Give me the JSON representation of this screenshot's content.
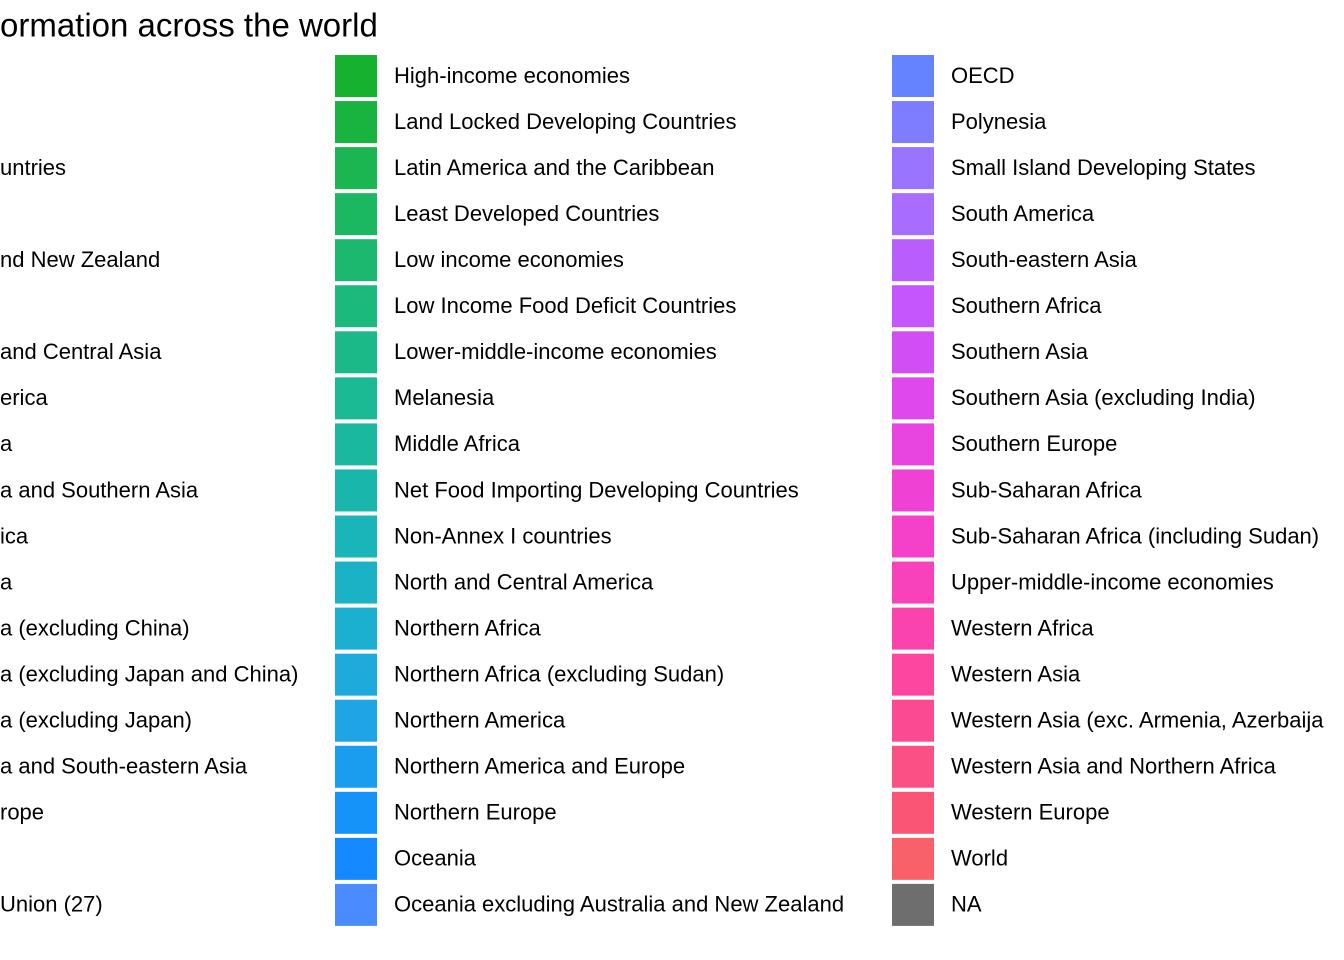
{
  "legend": {
    "title": "ormation across the world",
    "columns": [
      {
        "entries": [
          {
            "label": null,
            "color": null
          },
          {
            "label": null,
            "color": null
          },
          {
            "label": "untries",
            "color": null
          },
          {
            "label": null,
            "color": null
          },
          {
            "label": "nd New Zealand",
            "color": null
          },
          {
            "label": null,
            "color": null
          },
          {
            "label": "and Central Asia",
            "color": null
          },
          {
            "label": "erica",
            "color": null
          },
          {
            "label": "a",
            "color": null
          },
          {
            "label": "a and Southern Asia",
            "color": null
          },
          {
            "label": "ica",
            "color": null
          },
          {
            "label": "a",
            "color": null
          },
          {
            "label": "a (excluding China)",
            "color": null
          },
          {
            "label": "a (excluding Japan and China)",
            "color": null
          },
          {
            "label": "a (excluding Japan)",
            "color": null
          },
          {
            "label": "a and South-eastern Asia",
            "color": null
          },
          {
            "label": "rope",
            "color": null
          },
          {
            "label": null,
            "color": null
          },
          {
            "label": "Union (27)",
            "color": null
          }
        ]
      },
      {
        "entries": [
          {
            "label": "High-income economies",
            "color": "#17b130"
          },
          {
            "label": "Land Locked Developing Countries",
            "color": "#19b440"
          },
          {
            "label": "Latin America and the Caribbean",
            "color": "#1bb652"
          },
          {
            "label": "Least Developed Countries",
            "color": "#1cb761"
          },
          {
            "label": "Low income economies",
            "color": "#1cb86f"
          },
          {
            "label": "Low Income Food Deficit Countries",
            "color": "#1cb97c"
          },
          {
            "label": "Lower-middle-income economies",
            "color": "#1bb988"
          },
          {
            "label": "Melanesia",
            "color": "#1bb994"
          },
          {
            "label": "Middle Africa",
            "color": "#1ab89f"
          },
          {
            "label": "Net Food Importing Developing Countries",
            "color": "#19b7ab"
          },
          {
            "label": "Non-Annex I countries",
            "color": "#19b5b8"
          },
          {
            "label": "North and Central America",
            "color": "#1ab2c4"
          },
          {
            "label": "Northern Africa",
            "color": "#1bafd0"
          },
          {
            "label": "Northern Africa (excluding Sudan)",
            "color": "#1eabdb"
          },
          {
            "label": "Northern America",
            "color": "#1fa4e6"
          },
          {
            "label": "Northern America and Europe",
            "color": "#1a9cef"
          },
          {
            "label": "Northern Europe",
            "color": "#1593f9"
          },
          {
            "label": "Oceania",
            "color": "#1589ff"
          },
          {
            "label": "Oceania excluding Australia and New Zealand",
            "color": "#4a8bff"
          }
        ]
      },
      {
        "entries": [
          {
            "label": "OECD",
            "color": "#6683ff"
          },
          {
            "label": "Polynesia",
            "color": "#7f7dff"
          },
          {
            "label": "Small Island Developing States",
            "color": "#9874ff"
          },
          {
            "label": "South America",
            "color": "#a86cff"
          },
          {
            "label": "South-eastern Asia",
            "color": "#b95efd"
          },
          {
            "label": "Southern Africa",
            "color": "#c555fc"
          },
          {
            "label": "Southern Asia",
            "color": "#d14ef5"
          },
          {
            "label": "Southern Asia (excluding India)",
            "color": "#df48ec"
          },
          {
            "label": "Southern Europe",
            "color": "#e844e0"
          },
          {
            "label": "Sub-Saharan Africa",
            "color": "#ef42d4"
          },
          {
            "label": "Sub-Saharan Africa (including Sudan)",
            "color": "#f540c9"
          },
          {
            "label": "Upper-middle-income economies",
            "color": "#f842bb"
          },
          {
            "label": "Western Africa",
            "color": "#fb43ad"
          },
          {
            "label": "Western Asia",
            "color": "#fc46a0"
          },
          {
            "label": "Western Asia (exc. Armenia, Azerbaija",
            "color": "#fc4a92"
          },
          {
            "label": "Western Asia and Northern Africa",
            "color": "#fb5085"
          },
          {
            "label": "Western Europe",
            "color": "#fa5575"
          },
          {
            "label": "World",
            "color": "#f8616a"
          },
          {
            "label": "NA",
            "color": "#6e6e6e"
          }
        ]
      }
    ]
  }
}
